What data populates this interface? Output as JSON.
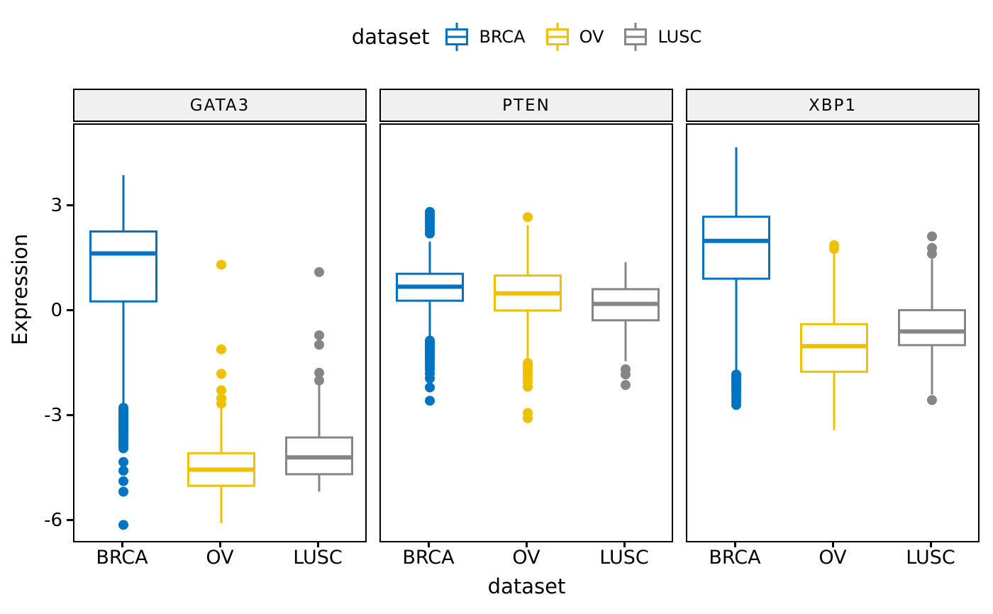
{
  "legend": {
    "title": "dataset",
    "items": [
      {
        "label": "BRCA",
        "color": "#0073C2"
      },
      {
        "label": "OV",
        "color": "#EFC000"
      },
      {
        "label": "LUSC",
        "color": "#868686"
      }
    ]
  },
  "colors": {
    "BRCA": "#0073C2",
    "OV": "#EFC000",
    "LUSC": "#868686",
    "strip_fill": "#F0F0F0",
    "panel_border": "#000000",
    "text": "#000000",
    "box_fill": "#FFFFFF"
  },
  "chart_data": {
    "type": "boxplot",
    "title": "",
    "xlabel": "dataset",
    "ylabel": "Expression",
    "facets": [
      "GATA3",
      "PTEN",
      "XBP1"
    ],
    "categories": [
      "BRCA",
      "OV",
      "LUSC"
    ],
    "y_ticks": [
      3,
      0,
      -3,
      -6
    ],
    "ylim": [
      -6.59,
      5.39
    ],
    "grid": "off",
    "legend_position": "top",
    "panels": [
      {
        "facet": "GATA3",
        "boxes": [
          {
            "dataset": "BRCA",
            "whisker_low": -2.62,
            "q1": 0.34,
            "median": 1.71,
            "q3": 2.34,
            "whisker_high": 3.95,
            "outliers": [
              -2.7,
              -2.74,
              -2.78,
              -2.83,
              -2.88,
              -2.93,
              -2.98,
              -3.03,
              -3.08,
              -3.13,
              -3.18,
              -3.24,
              -3.3,
              -3.36,
              -3.42,
              -3.48,
              -3.55,
              -3.62,
              -3.7,
              -3.78,
              -3.86,
              -4.25,
              -4.5,
              -4.8,
              -5.1,
              -6.05
            ]
          },
          {
            "dataset": "OV",
            "whisker_low": -6.0,
            "q1": -4.93,
            "median": -4.47,
            "q3": -4.0,
            "whisker_high": -2.72,
            "outliers": [
              1.39,
              -1.03,
              -1.73,
              -2.2,
              -2.43,
              -2.58
            ]
          },
          {
            "dataset": "LUSC",
            "whisker_low": -5.1,
            "q1": -4.6,
            "median": -4.12,
            "q3": -3.55,
            "whisker_high": -2.0,
            "outliers": [
              1.18,
              -0.63,
              -0.9,
              -1.7,
              -1.92
            ]
          }
        ]
      },
      {
        "facet": "PTEN",
        "boxes": [
          {
            "dataset": "BRCA",
            "whisker_low": -0.7,
            "q1": 0.36,
            "median": 0.76,
            "q3": 1.13,
            "whisker_high": 2.05,
            "outliers": [
              2.9,
              2.82,
              2.74,
              2.66,
              2.57,
              2.48,
              2.38,
              2.28,
              -0.78,
              -0.83,
              -0.88,
              -0.93,
              -0.98,
              -1.03,
              -1.08,
              -1.14,
              -1.2,
              -1.27,
              -1.34,
              -1.42,
              -1.5,
              -1.6,
              -1.72,
              -1.86,
              -2.12,
              -2.5
            ]
          },
          {
            "dataset": "OV",
            "whisker_low": -1.36,
            "q1": 0.08,
            "median": 0.57,
            "q3": 1.08,
            "whisker_high": 2.52,
            "outliers": [
              2.75,
              -1.42,
              -1.5,
              -1.58,
              -1.66,
              -1.75,
              -1.85,
              -1.95,
              -2.1,
              -2.85,
              -3.0
            ]
          },
          {
            "dataset": "LUSC",
            "whisker_low": -1.37,
            "q1": -0.2,
            "median": 0.27,
            "q3": 0.69,
            "whisker_high": 1.46,
            "outliers": [
              -1.6,
              -1.75,
              -2.05
            ]
          }
        ]
      },
      {
        "facet": "XBP1",
        "boxes": [
          {
            "dataset": "BRCA",
            "whisker_low": -1.7,
            "q1": 0.99,
            "median": 2.07,
            "q3": 2.76,
            "whisker_high": 4.75,
            "outliers": [
              -1.75,
              -1.81,
              -1.87,
              -1.94,
              -2.01,
              -2.08,
              -2.16,
              -2.24,
              -2.33,
              -2.42,
              -2.52,
              -2.62
            ]
          },
          {
            "dataset": "OV",
            "whisker_low": -3.34,
            "q1": -1.67,
            "median": -0.94,
            "q3": -0.31,
            "whisker_high": 1.7,
            "outliers": [
              1.95,
              1.84
            ]
          },
          {
            "dataset": "LUSC",
            "whisker_low": -2.32,
            "q1": -0.91,
            "median": -0.52,
            "q3": 0.09,
            "whisker_high": 1.55,
            "outliers": [
              2.2,
              1.87,
              1.7,
              -2.48
            ]
          }
        ]
      }
    ]
  }
}
